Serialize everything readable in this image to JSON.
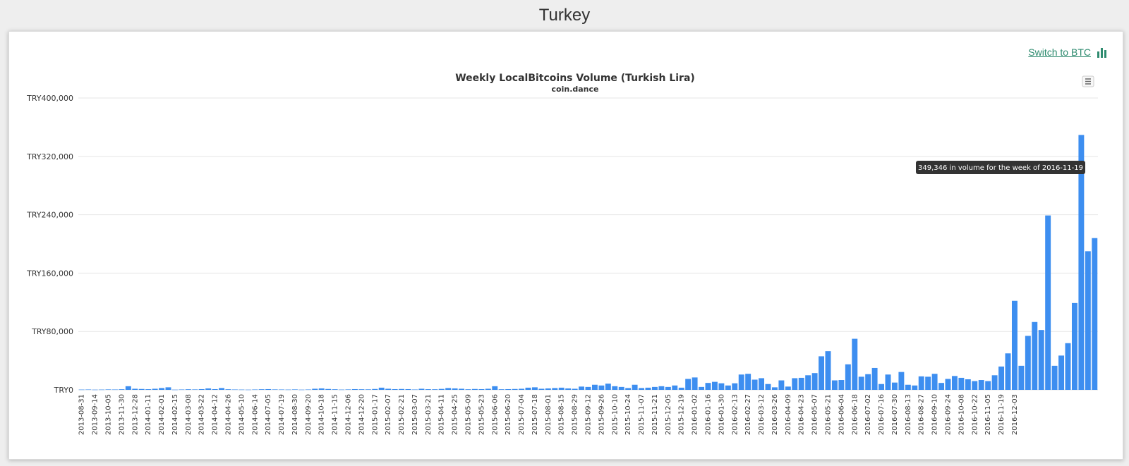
{
  "page": {
    "title": "Turkey"
  },
  "switch_link": {
    "label": "Switch to BTC",
    "icon": "bar-chart-icon",
    "color": "#2e8b6f"
  },
  "menu_button": {
    "icon": "hamburger-menu-icon"
  },
  "tooltip": {
    "text": "349,346 in volume for the week of 2016-11-19",
    "week": "2016-11-19",
    "value": 349346
  },
  "colors": {
    "bar": "#3d8ef0",
    "grid": "#e6e6e6",
    "tooltip_bg": "#333333"
  },
  "chart_data": {
    "type": "bar",
    "title": "Weekly LocalBitcoins Volume (Turkish Lira)",
    "subtitle": "coin.dance",
    "start_week": "2013-08-31",
    "ylim": [
      0,
      400000
    ],
    "yticks": [
      0,
      80000,
      160000,
      240000,
      320000,
      400000
    ],
    "ytick_labels": [
      "TRY0",
      "TRY80,000",
      "TRY160,000",
      "TRY240,000",
      "TRY320,000",
      "TRY400,000"
    ],
    "xtick_labels": [
      "2013-08-31",
      "2013-09-14",
      "2013-10-05",
      "2013-11-30",
      "2013-12-28",
      "2014-01-11",
      "2014-02-01",
      "2014-02-15",
      "2014-03-08",
      "2014-03-22",
      "2014-04-12",
      "2014-04-26",
      "2014-05-10",
      "2014-06-14",
      "2014-07-05",
      "2014-07-19",
      "2014-08-30",
      "2014-09-20",
      "2014-10-18",
      "2014-11-15",
      "2014-12-06",
      "2014-12-20",
      "2015-01-17",
      "2015-02-07",
      "2015-02-21",
      "2015-03-07",
      "2015-03-21",
      "2015-04-11",
      "2015-04-25",
      "2015-05-09",
      "2015-05-23",
      "2015-06-06",
      "2015-06-20",
      "2015-07-04",
      "2015-07-18",
      "2015-08-01",
      "2015-08-15",
      "2015-08-29",
      "2015-09-12",
      "2015-09-26",
      "2015-10-10",
      "2015-10-24",
      "2015-11-07",
      "2015-11-21",
      "2015-12-05",
      "2015-12-19",
      "2016-01-02",
      "2016-01-16",
      "2016-01-30",
      "2016-02-13",
      "2016-02-27",
      "2016-03-12",
      "2016-03-26",
      "2016-04-09",
      "2016-04-23",
      "2016-05-07",
      "2016-05-21",
      "2016-06-04",
      "2016-06-18",
      "2016-07-02",
      "2016-07-16",
      "2016-07-30",
      "2016-08-13",
      "2016-08-27",
      "2016-09-10",
      "2016-09-24",
      "2016-10-08",
      "2016-10-22",
      "2016-11-05",
      "2016-11-19",
      "2016-12-03"
    ],
    "values": [
      400,
      500,
      300,
      400,
      600,
      500,
      800,
      5000,
      1500,
      1200,
      900,
      1500,
      2500,
      3500,
      300,
      500,
      800,
      600,
      1000,
      2000,
      1000,
      2500,
      800,
      500,
      400,
      300,
      500,
      800,
      1000,
      600,
      500,
      400,
      600,
      300,
      500,
      1500,
      2000,
      1200,
      800,
      400,
      600,
      1000,
      800,
      700,
      1200,
      3000,
      1500,
      1000,
      1200,
      1000,
      500,
      1500,
      900,
      800,
      1300,
      2500,
      2000,
      1500,
      800,
      1200,
      1000,
      1500,
      5000,
      800,
      1000,
      1200,
      1500,
      3000,
      3500,
      1500,
      2000,
      2500,
      3000,
      2000,
      1500,
      4500,
      4000,
      7000,
      6000,
      8500,
      5000,
      4000,
      2500,
      7000,
      2500,
      3000,
      4000,
      5000,
      4000,
      6000,
      3000,
      15000,
      17000,
      4000,
      9500,
      11000,
      9000,
      6000,
      9000,
      21000,
      22000,
      14000,
      16000,
      8000,
      3500,
      13000,
      4500,
      16000,
      16500,
      20000,
      23000,
      46000,
      53000,
      13000,
      13500,
      35000,
      70000,
      18000,
      21500,
      30000,
      8000,
      21000,
      10000,
      24500,
      7000,
      6000,
      18500,
      18000,
      22000,
      9500,
      15000,
      19000,
      16500,
      14500,
      12000,
      13500,
      12000,
      20000,
      32000,
      50000,
      122000,
      33000,
      74000,
      93000,
      82000,
      239000,
      33000,
      47000,
      64000,
      119000,
      349346,
      190000,
      208000
    ]
  }
}
